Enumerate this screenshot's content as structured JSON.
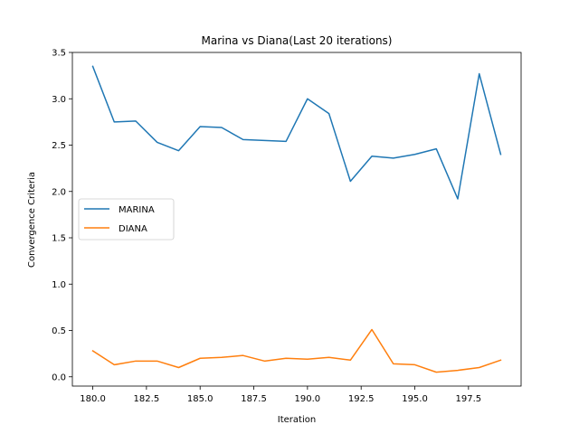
{
  "chart_data": {
    "type": "line",
    "title": "Marina vs Diana(Last 20 iterations)",
    "xlabel": "Iteration",
    "ylabel": "Convergence Criteria",
    "xlim": [
      179.05,
      199.95
    ],
    "ylim": [
      -0.1,
      3.5
    ],
    "xticks": [
      180.0,
      182.5,
      185.0,
      187.5,
      190.0,
      192.5,
      195.0,
      197.5
    ],
    "xtick_labels": [
      "180.0",
      "182.5",
      "185.0",
      "187.5",
      "190.0",
      "192.5",
      "195.0",
      "197.5"
    ],
    "yticks": [
      0.0,
      0.5,
      1.0,
      1.5,
      2.0,
      2.5,
      3.0,
      3.5
    ],
    "ytick_labels": [
      "0.0",
      "0.5",
      "1.0",
      "1.5",
      "2.0",
      "2.5",
      "3.0",
      "3.5"
    ],
    "grid": false,
    "legend_position": "center-left",
    "x": [
      180,
      181,
      182,
      183,
      184,
      185,
      186,
      187,
      188,
      189,
      190,
      191,
      192,
      193,
      194,
      195,
      196,
      197,
      198,
      199
    ],
    "series": [
      {
        "name": "MARINA",
        "color": "#1f77b4",
        "values": [
          3.35,
          2.75,
          2.76,
          2.53,
          2.44,
          2.7,
          2.69,
          2.56,
          2.55,
          2.54,
          3.0,
          2.84,
          2.11,
          2.38,
          2.36,
          2.4,
          2.46,
          1.92,
          3.27,
          2.4
        ]
      },
      {
        "name": "DIANA",
        "color": "#ff7f0e",
        "values": [
          0.28,
          0.13,
          0.17,
          0.17,
          0.1,
          0.2,
          0.21,
          0.23,
          0.17,
          0.2,
          0.19,
          0.21,
          0.18,
          0.51,
          0.14,
          0.13,
          0.05,
          0.07,
          0.1,
          0.18
        ]
      }
    ]
  }
}
